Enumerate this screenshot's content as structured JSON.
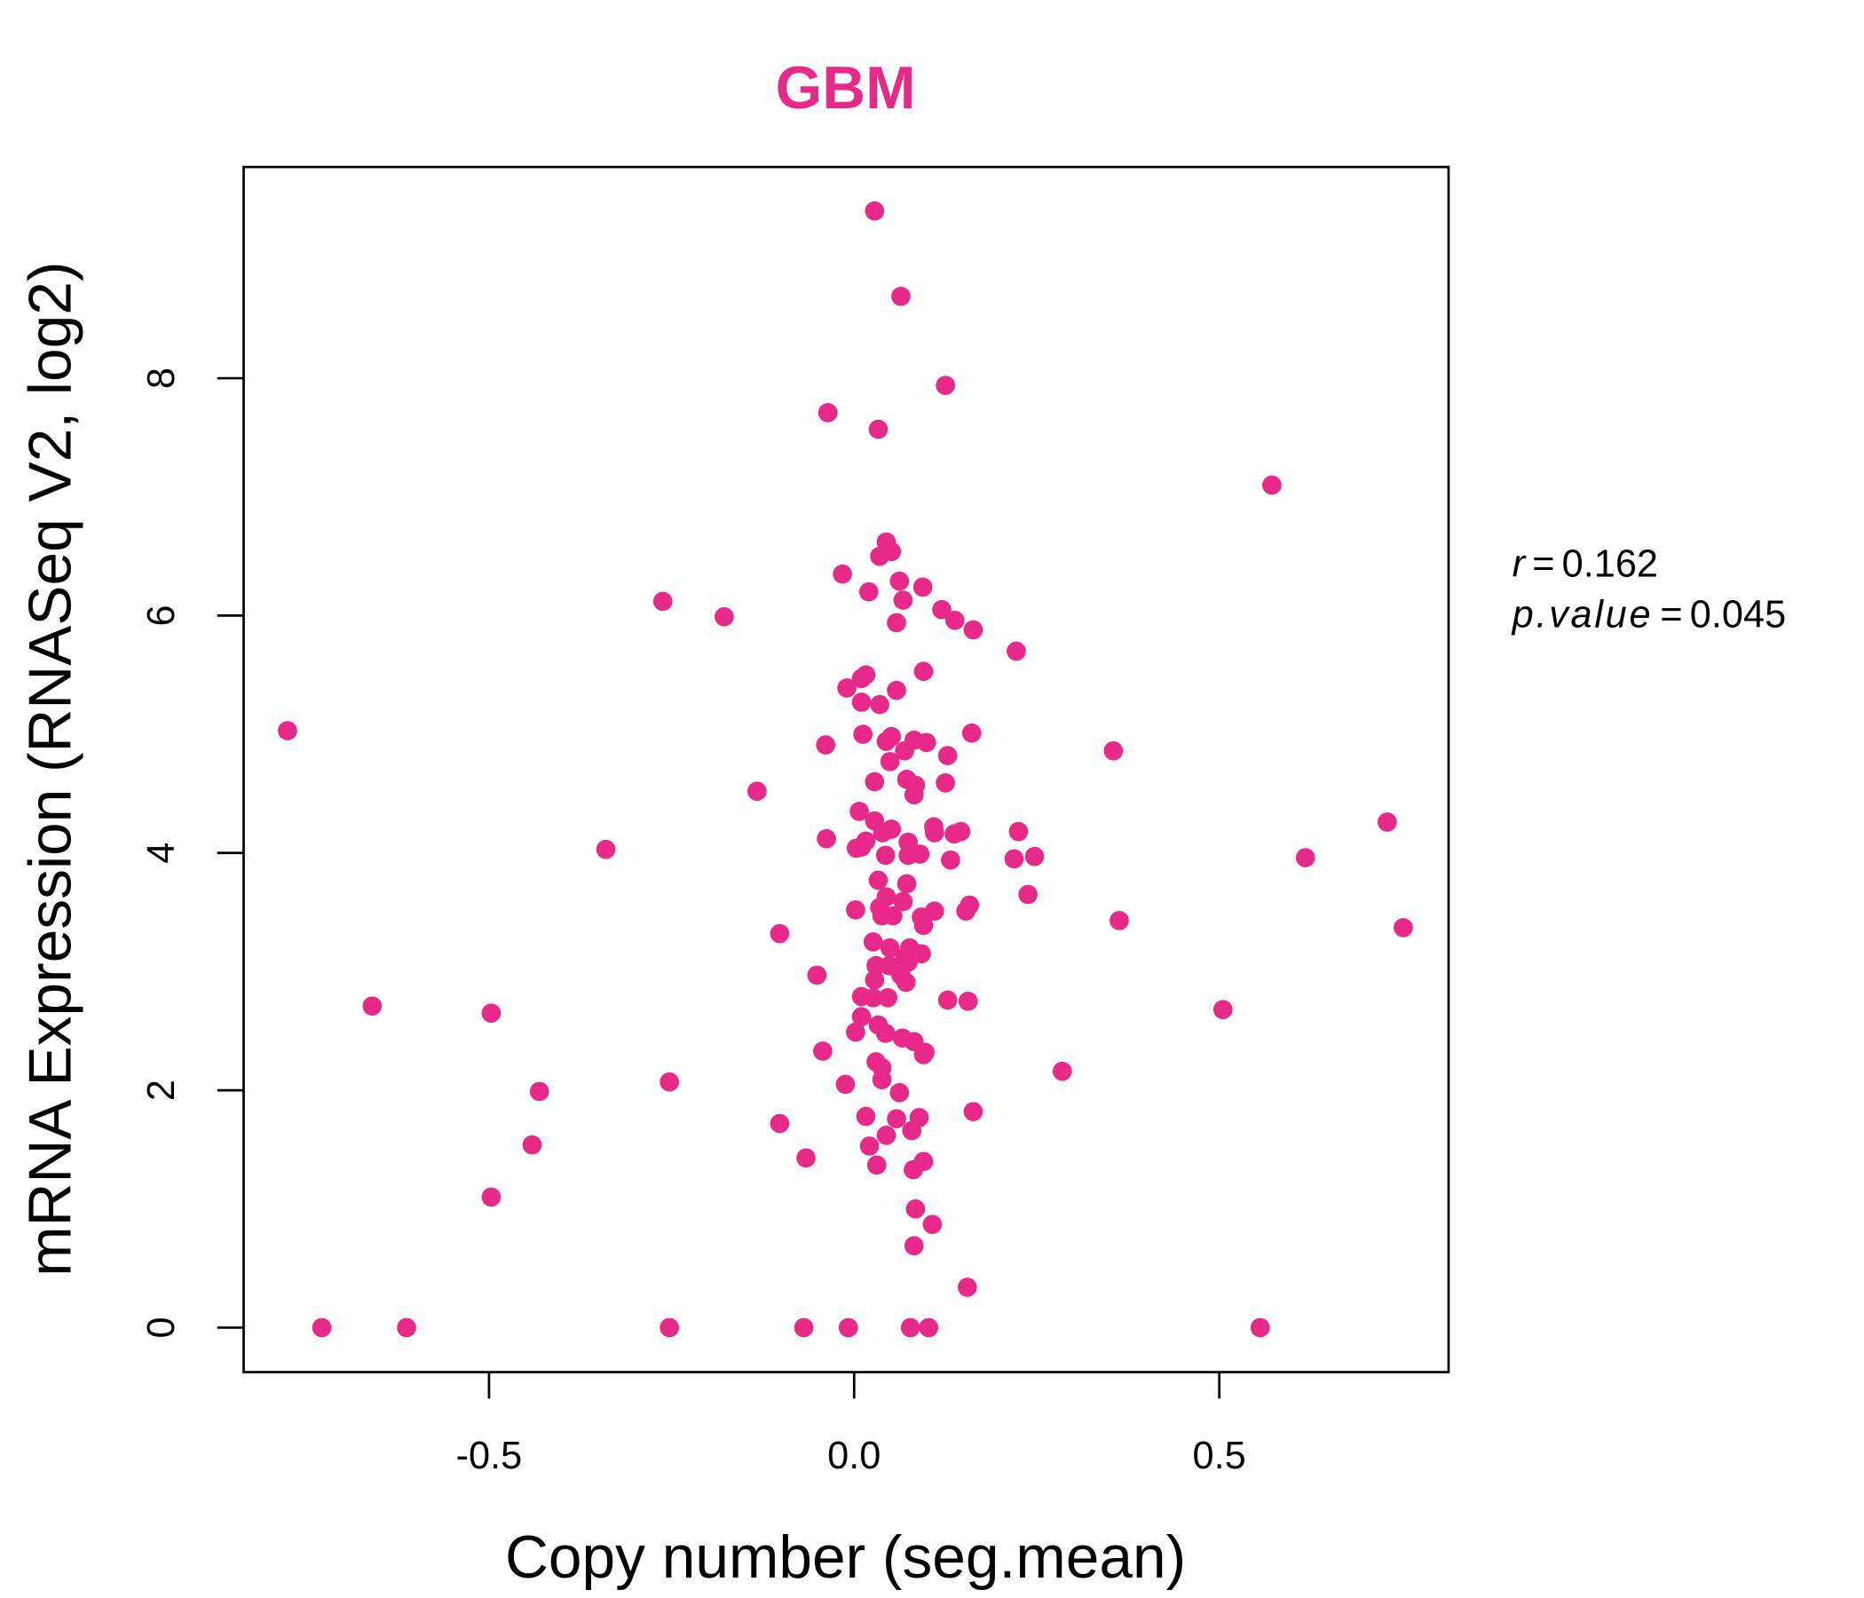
{
  "chart_data": {
    "type": "scatter",
    "title": "GBM",
    "xlabel": "Copy number (seg.mean)",
    "ylabel": "mRNA Expression (RNASeq V2, log2)",
    "xlim": [
      -0.836,
      0.814
    ],
    "ylim": [
      -0.375,
      9.78
    ],
    "xticks": [
      -0.5,
      0.0,
      0.5
    ],
    "xtick_labels": [
      "-0.5",
      "0.0",
      "0.5"
    ],
    "yticks": [
      0,
      2,
      4,
      6,
      8
    ],
    "ytick_labels": [
      "0",
      "2",
      "4",
      "6",
      "8"
    ],
    "grid": false,
    "color": "#E7298A",
    "annotation": {
      "r_label": "r",
      "r_value": "0.162",
      "p_label": "p.value",
      "p_value": "0.045",
      "eq": "="
    },
    "points": [
      [
        0.028,
        9.41
      ],
      [
        0.064,
        8.69
      ],
      [
        0.125,
        7.94
      ],
      [
        -0.036,
        7.71
      ],
      [
        0.033,
        7.57
      ],
      [
        0.572,
        7.1
      ],
      [
        0.044,
        6.62
      ],
      [
        0.051,
        6.54
      ],
      [
        0.035,
        6.5
      ],
      [
        -0.016,
        6.35
      ],
      [
        0.062,
        6.29
      ],
      [
        0.094,
        6.24
      ],
      [
        0.02,
        6.2
      ],
      [
        -0.262,
        6.12
      ],
      [
        0.067,
        6.13
      ],
      [
        0.12,
        6.05
      ],
      [
        0.138,
        5.96
      ],
      [
        -0.178,
        5.99
      ],
      [
        0.058,
        5.94
      ],
      [
        0.163,
        5.88
      ],
      [
        0.222,
        5.7
      ],
      [
        0.095,
        5.53
      ],
      [
        0.016,
        5.5
      ],
      [
        0.01,
        5.47
      ],
      [
        -0.01,
        5.39
      ],
      [
        0.058,
        5.37
      ],
      [
        0.01,
        5.27
      ],
      [
        0.035,
        5.25
      ],
      [
        -0.776,
        5.03
      ],
      [
        0.012,
        5.0
      ],
      [
        0.161,
        5.01
      ],
      [
        0.051,
        4.98
      ],
      [
        0.044,
        4.94
      ],
      [
        0.082,
        4.95
      ],
      [
        0.099,
        4.93
      ],
      [
        -0.039,
        4.91
      ],
      [
        0.355,
        4.86
      ],
      [
        0.069,
        4.86
      ],
      [
        0.128,
        4.82
      ],
      [
        0.049,
        4.77
      ],
      [
        0.028,
        4.6
      ],
      [
        0.072,
        4.62
      ],
      [
        0.084,
        4.57
      ],
      [
        0.125,
        4.59
      ],
      [
        -0.133,
        4.52
      ],
      [
        0.082,
        4.49
      ],
      [
        0.007,
        4.35
      ],
      [
        0.73,
        4.26
      ],
      [
        0.028,
        4.27
      ],
      [
        0.051,
        4.2
      ],
      [
        0.109,
        4.22
      ],
      [
        0.225,
        4.18
      ],
      [
        0.146,
        4.18
      ],
      [
        0.137,
        4.16
      ],
      [
        0.11,
        4.17
      ],
      [
        0.039,
        4.17
      ],
      [
        -0.038,
        4.12
      ],
      [
        0.016,
        4.1
      ],
      [
        0.074,
        4.09
      ],
      [
        0.01,
        4.05
      ],
      [
        0.003,
        4.04
      ],
      [
        -0.34,
        4.03
      ],
      [
        0.043,
        3.98
      ],
      [
        0.074,
        3.98
      ],
      [
        0.09,
        3.99
      ],
      [
        0.219,
        3.95
      ],
      [
        0.247,
        3.97
      ],
      [
        0.132,
        3.94
      ],
      [
        0.618,
        3.96
      ],
      [
        0.033,
        3.77
      ],
      [
        0.072,
        3.74
      ],
      [
        0.238,
        3.65
      ],
      [
        0.067,
        3.59
      ],
      [
        0.044,
        3.63
      ],
      [
        0.158,
        3.56
      ],
      [
        0.035,
        3.54
      ],
      [
        0.002,
        3.52
      ],
      [
        0.11,
        3.51
      ],
      [
        0.153,
        3.51
      ],
      [
        0.038,
        3.47
      ],
      [
        0.053,
        3.47
      ],
      [
        0.092,
        3.46
      ],
      [
        0.095,
        3.39
      ],
      [
        0.363,
        3.43
      ],
      [
        0.752,
        3.37
      ],
      [
        -0.102,
        3.32
      ],
      [
        0.026,
        3.25
      ],
      [
        0.049,
        3.2
      ],
      [
        0.076,
        3.2
      ],
      [
        0.092,
        3.15
      ],
      [
        0.069,
        3.12
      ],
      [
        0.03,
        3.05
      ],
      [
        0.048,
        3.05
      ],
      [
        0.074,
        3.08
      ],
      [
        -0.051,
        2.97
      ],
      [
        0.064,
        2.97
      ],
      [
        0.028,
        2.93
      ],
      [
        0.071,
        2.91
      ],
      [
        0.01,
        2.79
      ],
      [
        0.026,
        2.78
      ],
      [
        0.046,
        2.78
      ],
      [
        0.128,
        2.76
      ],
      [
        0.156,
        2.75
      ],
      [
        -0.66,
        2.71
      ],
      [
        0.505,
        2.68
      ],
      [
        -0.497,
        2.65
      ],
      [
        0.01,
        2.62
      ],
      [
        0.033,
        2.55
      ],
      [
        0.002,
        2.49
      ],
      [
        0.043,
        2.48
      ],
      [
        0.066,
        2.44
      ],
      [
        0.082,
        2.41
      ],
      [
        -0.043,
        2.33
      ],
      [
        0.097,
        2.32
      ],
      [
        0.095,
        2.3
      ],
      [
        0.03,
        2.24
      ],
      [
        0.038,
        2.19
      ],
      [
        0.285,
        2.16
      ],
      [
        0.038,
        2.09
      ],
      [
        -0.253,
        2.07
      ],
      [
        -0.012,
        2.05
      ],
      [
        -0.431,
        1.99
      ],
      [
        0.062,
        1.98
      ],
      [
        0.163,
        1.82
      ],
      [
        0.016,
        1.78
      ],
      [
        0.089,
        1.77
      ],
      [
        0.058,
        1.76
      ],
      [
        -0.102,
        1.72
      ],
      [
        0.079,
        1.66
      ],
      [
        0.044,
        1.62
      ],
      [
        0.021,
        1.53
      ],
      [
        -0.441,
        1.54
      ],
      [
        -0.066,
        1.43
      ],
      [
        0.095,
        1.4
      ],
      [
        0.031,
        1.37
      ],
      [
        0.081,
        1.33
      ],
      [
        -0.497,
        1.1
      ],
      [
        0.084,
        1.0
      ],
      [
        0.107,
        0.87
      ],
      [
        0.082,
        0.69
      ],
      [
        0.155,
        0.34
      ],
      [
        -0.729,
        0
      ],
      [
        -0.613,
        0
      ],
      [
        -0.253,
        0
      ],
      [
        -0.069,
        0
      ],
      [
        -0.008,
        0
      ],
      [
        0.077,
        0
      ],
      [
        0.102,
        0
      ],
      [
        0.556,
        0
      ]
    ]
  }
}
